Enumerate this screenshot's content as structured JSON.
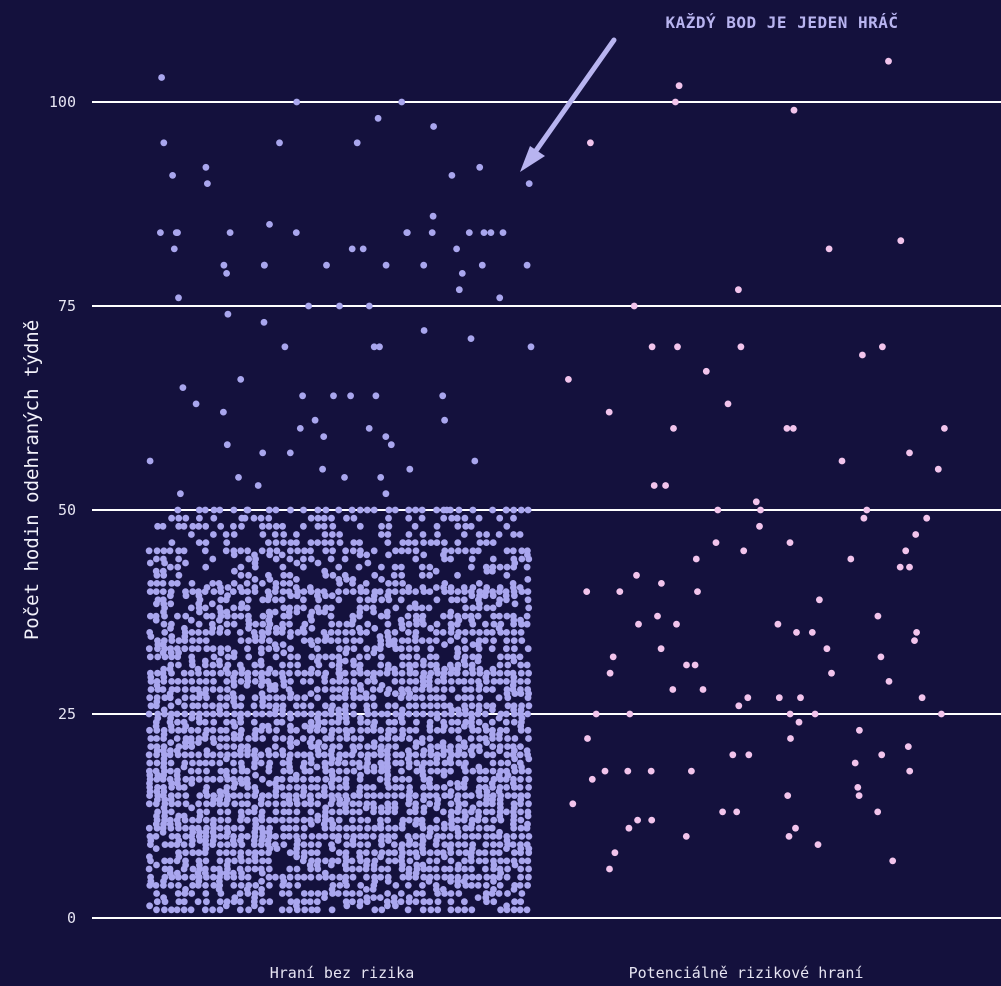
{
  "chart_data": {
    "type": "scatter",
    "title": "",
    "ylabel": "Počet hodin odehraných týdně",
    "xlabel": "",
    "ylim": [
      0,
      107
    ],
    "yticks": [
      0,
      25,
      50,
      75,
      100
    ],
    "grid": true,
    "categories": [
      "Hraní bez rizika",
      "Potenciálně rizikové hraní"
    ],
    "annotation": "KAŽDÝ BOD JE JEDEN HRÁČ",
    "colors": {
      "background": "#14113d",
      "grid": "#ffffff",
      "no_risk": "#a9a6ee",
      "risk": "#f2c4ec",
      "annotation": "#b8b4f0"
    },
    "series": [
      {
        "category": "Hraní bez rizika",
        "values": [
          98,
          80,
          95,
          80,
          84,
          82,
          80,
          76,
          76,
          70,
          84,
          80,
          90,
          91,
          100,
          103,
          84,
          84,
          84,
          77,
          86,
          82,
          80,
          75,
          74,
          84,
          84,
          82,
          92,
          84,
          80,
          84,
          92,
          79,
          84,
          97,
          95,
          95,
          90,
          100,
          84,
          80,
          91,
          85,
          84,
          82,
          79,
          80,
          75,
          75,
          73,
          71,
          70,
          70,
          72,
          70,
          64,
          60,
          66,
          65,
          64,
          64,
          59,
          57,
          55,
          52,
          61,
          58,
          63,
          56,
          54,
          52,
          50,
          49,
          64,
          60,
          58,
          55,
          54,
          62,
          59,
          56,
          53,
          50,
          64,
          61,
          57,
          54,
          50
        ]
      },
      {
        "category": "Potenciálně rizikové hraní",
        "values": [
          102,
          105,
          100,
          99,
          95,
          83,
          82,
          77,
          75,
          70,
          70,
          70,
          70,
          69,
          67,
          66,
          63,
          62,
          60,
          60,
          60,
          60,
          57,
          56,
          55,
          53,
          53,
          51,
          50,
          50,
          50,
          49,
          49,
          48,
          47,
          46,
          46,
          45,
          45,
          44,
          44,
          43,
          43,
          42,
          41,
          40,
          40,
          40,
          39,
          37,
          37,
          36,
          36,
          36,
          35,
          35,
          35,
          34,
          33,
          33,
          32,
          32,
          31,
          31,
          30,
          30,
          29,
          28,
          28,
          27,
          27,
          27,
          27,
          26,
          25,
          25,
          25,
          25,
          25,
          24,
          23,
          22,
          22,
          21,
          20,
          20,
          20,
          19,
          18,
          18,
          18,
          18,
          18,
          17,
          16,
          15,
          15,
          14,
          13,
          13,
          13,
          12,
          12,
          11,
          11,
          10,
          10,
          9,
          8,
          7,
          6
        ]
      }
    ],
    "dense_band": {
      "category": "Hraní bez rizika",
      "y_range": [
        1,
        50
      ],
      "note": "several thousand players"
    }
  }
}
